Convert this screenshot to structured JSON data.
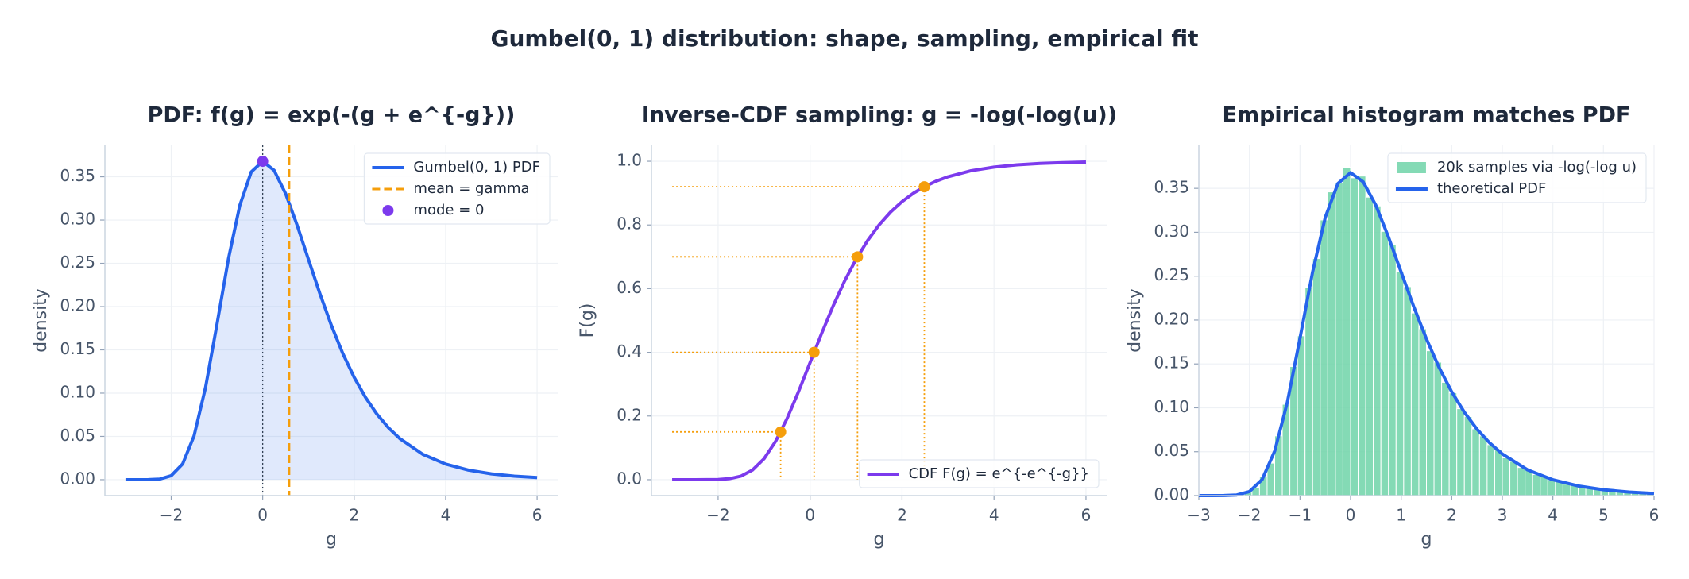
{
  "title": "Gumbel(0, 1) distribution: shape, sampling, empirical fit",
  "chart_data": [
    {
      "type": "line",
      "title": "PDF:  f(g) = exp(-(g + e^{-g}))",
      "xlabel": "g",
      "ylabel": "density",
      "xlim": [
        -3.45,
        6.45
      ],
      "ylim": [
        -0.0184,
        0.3863
      ],
      "grid": true,
      "legend": "upper right",
      "xticks": [
        {
          "value": -2,
          "label": "−2"
        },
        {
          "value": 0,
          "label": "0"
        },
        {
          "value": 2,
          "label": "2"
        },
        {
          "value": 4,
          "label": "4"
        },
        {
          "value": 6,
          "label": "6"
        }
      ],
      "yticks": [
        {
          "value": 0,
          "label": "0.00"
        },
        {
          "value": 0.05,
          "label": "0.05"
        },
        {
          "value": 0.1,
          "label": "0.10"
        },
        {
          "value": 0.15,
          "label": "0.15"
        },
        {
          "value": 0.2,
          "label": "0.20"
        },
        {
          "value": 0.25,
          "label": "0.25"
        },
        {
          "value": 0.3,
          "label": "0.30"
        },
        {
          "value": 0.35,
          "label": "0.35"
        }
      ],
      "x": [
        -3,
        -2.75,
        -2.5,
        -2.25,
        -2,
        -1.75,
        -1.5,
        -1.25,
        -1,
        -0.75,
        -0.5,
        -0.25,
        0,
        0.25,
        0.5,
        0.75,
        1,
        1.25,
        1.5,
        1.75,
        2,
        2.25,
        2.5,
        2.75,
        3,
        3.5,
        4,
        4.5,
        5,
        5.5,
        6
      ],
      "series": [
        {
          "name": "Gumbel(0, 1) PDF",
          "color": "#2563eb",
          "fill": true,
          "values": [
            0,
            0,
            0.0001,
            0.0007,
            0.0046,
            0.0182,
            0.0507,
            0.1064,
            0.1793,
            0.2549,
            0.317,
            0.3556,
            0.3679,
            0.3574,
            0.3307,
            0.2945,
            0.2546,
            0.2151,
            0.1785,
            0.146,
            0.1182,
            0.0949,
            0.0756,
            0.06,
            0.0474,
            0.0293,
            0.018,
            0.011,
            0.0067,
            0.0041,
            0.0025
          ]
        }
      ],
      "vlines": [
        {
          "name": "mean = gamma",
          "x": 0.5772,
          "color": "#f59e0b",
          "style": "dashed"
        }
      ],
      "points": [
        {
          "name": "mode = 0",
          "x": 0,
          "y": 0.3679,
          "color": "#7c3aed",
          "guide": "dotted"
        }
      ]
    },
    {
      "type": "line",
      "title": "Inverse-CDF sampling:  g = -log(-log(u))",
      "xlabel": "g",
      "ylabel": "F(g)",
      "xlim": [
        -3.45,
        6.45
      ],
      "ylim": [
        -0.05,
        1.05
      ],
      "grid": true,
      "legend": "lower right",
      "xticks": [
        {
          "value": -2,
          "label": "−2"
        },
        {
          "value": 0,
          "label": "0"
        },
        {
          "value": 2,
          "label": "2"
        },
        {
          "value": 4,
          "label": "4"
        },
        {
          "value": 6,
          "label": "6"
        }
      ],
      "yticks": [
        {
          "value": 0,
          "label": "0.0"
        },
        {
          "value": 0.2,
          "label": "0.2"
        },
        {
          "value": 0.4,
          "label": "0.4"
        },
        {
          "value": 0.6,
          "label": "0.6"
        },
        {
          "value": 0.8,
          "label": "0.8"
        },
        {
          "value": 1,
          "label": "1.0"
        }
      ],
      "x": [
        -3,
        -2.75,
        -2.5,
        -2.25,
        -2,
        -1.75,
        -1.5,
        -1.25,
        -1,
        -0.75,
        -0.5,
        -0.25,
        0,
        0.25,
        0.5,
        0.75,
        1,
        1.25,
        1.5,
        1.75,
        2,
        2.25,
        2.5,
        2.75,
        3,
        3.5,
        4,
        4.5,
        5,
        5.5,
        6
      ],
      "series": [
        {
          "name": "CDF  F(g) = e^{-e^{-g}}",
          "color": "#7c3aed",
          "fill": false,
          "values": [
            0,
            0,
            0,
            0.0001,
            0.0006,
            0.0032,
            0.0113,
            0.0305,
            0.066,
            0.1204,
            0.1923,
            0.2769,
            0.3679,
            0.459,
            0.5452,
            0.6236,
            0.6922,
            0.7509,
            0.8,
            0.8405,
            0.8734,
            0.9,
            0.9212,
            0.9381,
            0.9514,
            0.9703,
            0.9818,
            0.989,
            0.9933,
            0.9959,
            0.9975
          ]
        }
      ],
      "samples": {
        "color": "#f59e0b",
        "u": [
          0.15,
          0.4,
          0.7,
          0.92
        ],
        "g": [
          -0.6404,
          0.0874,
          1.0309,
          2.4843
        ]
      }
    },
    {
      "type": "histogram",
      "title": "Empirical histogram matches PDF",
      "xlabel": "g",
      "ylabel": "density",
      "xlim": [
        -3,
        6
      ],
      "ylim": [
        0,
        0.399
      ],
      "grid": true,
      "legend": "upper right",
      "xticks": [
        {
          "value": -3,
          "label": "−3"
        },
        {
          "value": -2,
          "label": "−2"
        },
        {
          "value": -1,
          "label": "−1"
        },
        {
          "value": 0,
          "label": "0"
        },
        {
          "value": 1,
          "label": "1"
        },
        {
          "value": 2,
          "label": "2"
        },
        {
          "value": 3,
          "label": "3"
        },
        {
          "value": 4,
          "label": "4"
        },
        {
          "value": 5,
          "label": "5"
        },
        {
          "value": 6,
          "label": "6"
        }
      ],
      "yticks": [
        {
          "value": 0,
          "label": "0.00"
        },
        {
          "value": 0.05,
          "label": "0.05"
        },
        {
          "value": 0.1,
          "label": "0.10"
        },
        {
          "value": 0.15,
          "label": "0.15"
        },
        {
          "value": 0.2,
          "label": "0.20"
        },
        {
          "value": 0.25,
          "label": "0.25"
        },
        {
          "value": 0.3,
          "label": "0.30"
        },
        {
          "value": 0.35,
          "label": "0.35"
        }
      ],
      "bins": [
        -3,
        -2.85,
        -2.7,
        -2.55,
        -2.4,
        -2.25,
        -2.1,
        -1.95,
        -1.8,
        -1.65,
        -1.5,
        -1.35,
        -1.2,
        -1.05,
        -0.9,
        -0.75,
        -0.6,
        -0.45,
        -0.3,
        -0.15,
        0,
        0.15,
        0.3,
        0.45,
        0.6,
        0.75,
        0.9,
        1.05,
        1.2,
        1.35,
        1.5,
        1.65,
        1.8,
        1.95,
        2.1,
        2.25,
        2.4,
        2.55,
        2.7,
        2.85,
        3,
        3.15,
        3.3,
        3.45,
        3.6,
        3.75,
        3.9,
        4.05,
        4.2,
        4.35,
        4.5,
        4.65,
        4.8,
        4.95,
        5.1,
        5.25,
        5.4,
        5.55,
        5.7,
        5.85,
        6
      ],
      "series": [
        {
          "name": "20k samples via -log(-log u)",
          "color": "#6ed3a8",
          "values": [
            0,
            0,
            0,
            0.0001,
            0.0003,
            0.0017,
            0.004,
            0.0093,
            0.0215,
            0.037,
            0.068,
            0.104,
            0.147,
            0.182,
            0.237,
            0.27,
            0.314,
            0.346,
            0.356,
            0.374,
            0.362,
            0.364,
            0.34,
            0.33,
            0.301,
            0.286,
            0.255,
            0.238,
            0.208,
            0.19,
            0.165,
            0.152,
            0.129,
            0.117,
            0.099,
            0.09,
            0.076,
            0.068,
            0.058,
            0.052,
            0.043,
            0.039,
            0.032,
            0.029,
            0.024,
            0.022,
            0.018,
            0.016,
            0.013,
            0.012,
            0.01,
            0.009,
            0.008,
            0.006,
            0.006,
            0.005,
            0.004,
            0.003,
            0.003,
            0.003
          ]
        }
      ],
      "line": {
        "name": "theoretical PDF",
        "color": "#2563eb",
        "x": [
          -3,
          -2.75,
          -2.5,
          -2.25,
          -2,
          -1.75,
          -1.5,
          -1.25,
          -1,
          -0.75,
          -0.5,
          -0.25,
          0,
          0.25,
          0.5,
          0.75,
          1,
          1.25,
          1.5,
          1.75,
          2,
          2.25,
          2.5,
          2.75,
          3,
          3.5,
          4,
          4.5,
          5,
          5.5,
          6
        ],
        "values": [
          0,
          0,
          0.0001,
          0.0007,
          0.0046,
          0.0182,
          0.0507,
          0.1064,
          0.1793,
          0.2549,
          0.317,
          0.3556,
          0.3679,
          0.3574,
          0.3307,
          0.2945,
          0.2546,
          0.2151,
          0.1785,
          0.146,
          0.1182,
          0.0949,
          0.0756,
          0.06,
          0.0474,
          0.0293,
          0.018,
          0.011,
          0.0067,
          0.0041,
          0.0025
        ]
      }
    }
  ]
}
